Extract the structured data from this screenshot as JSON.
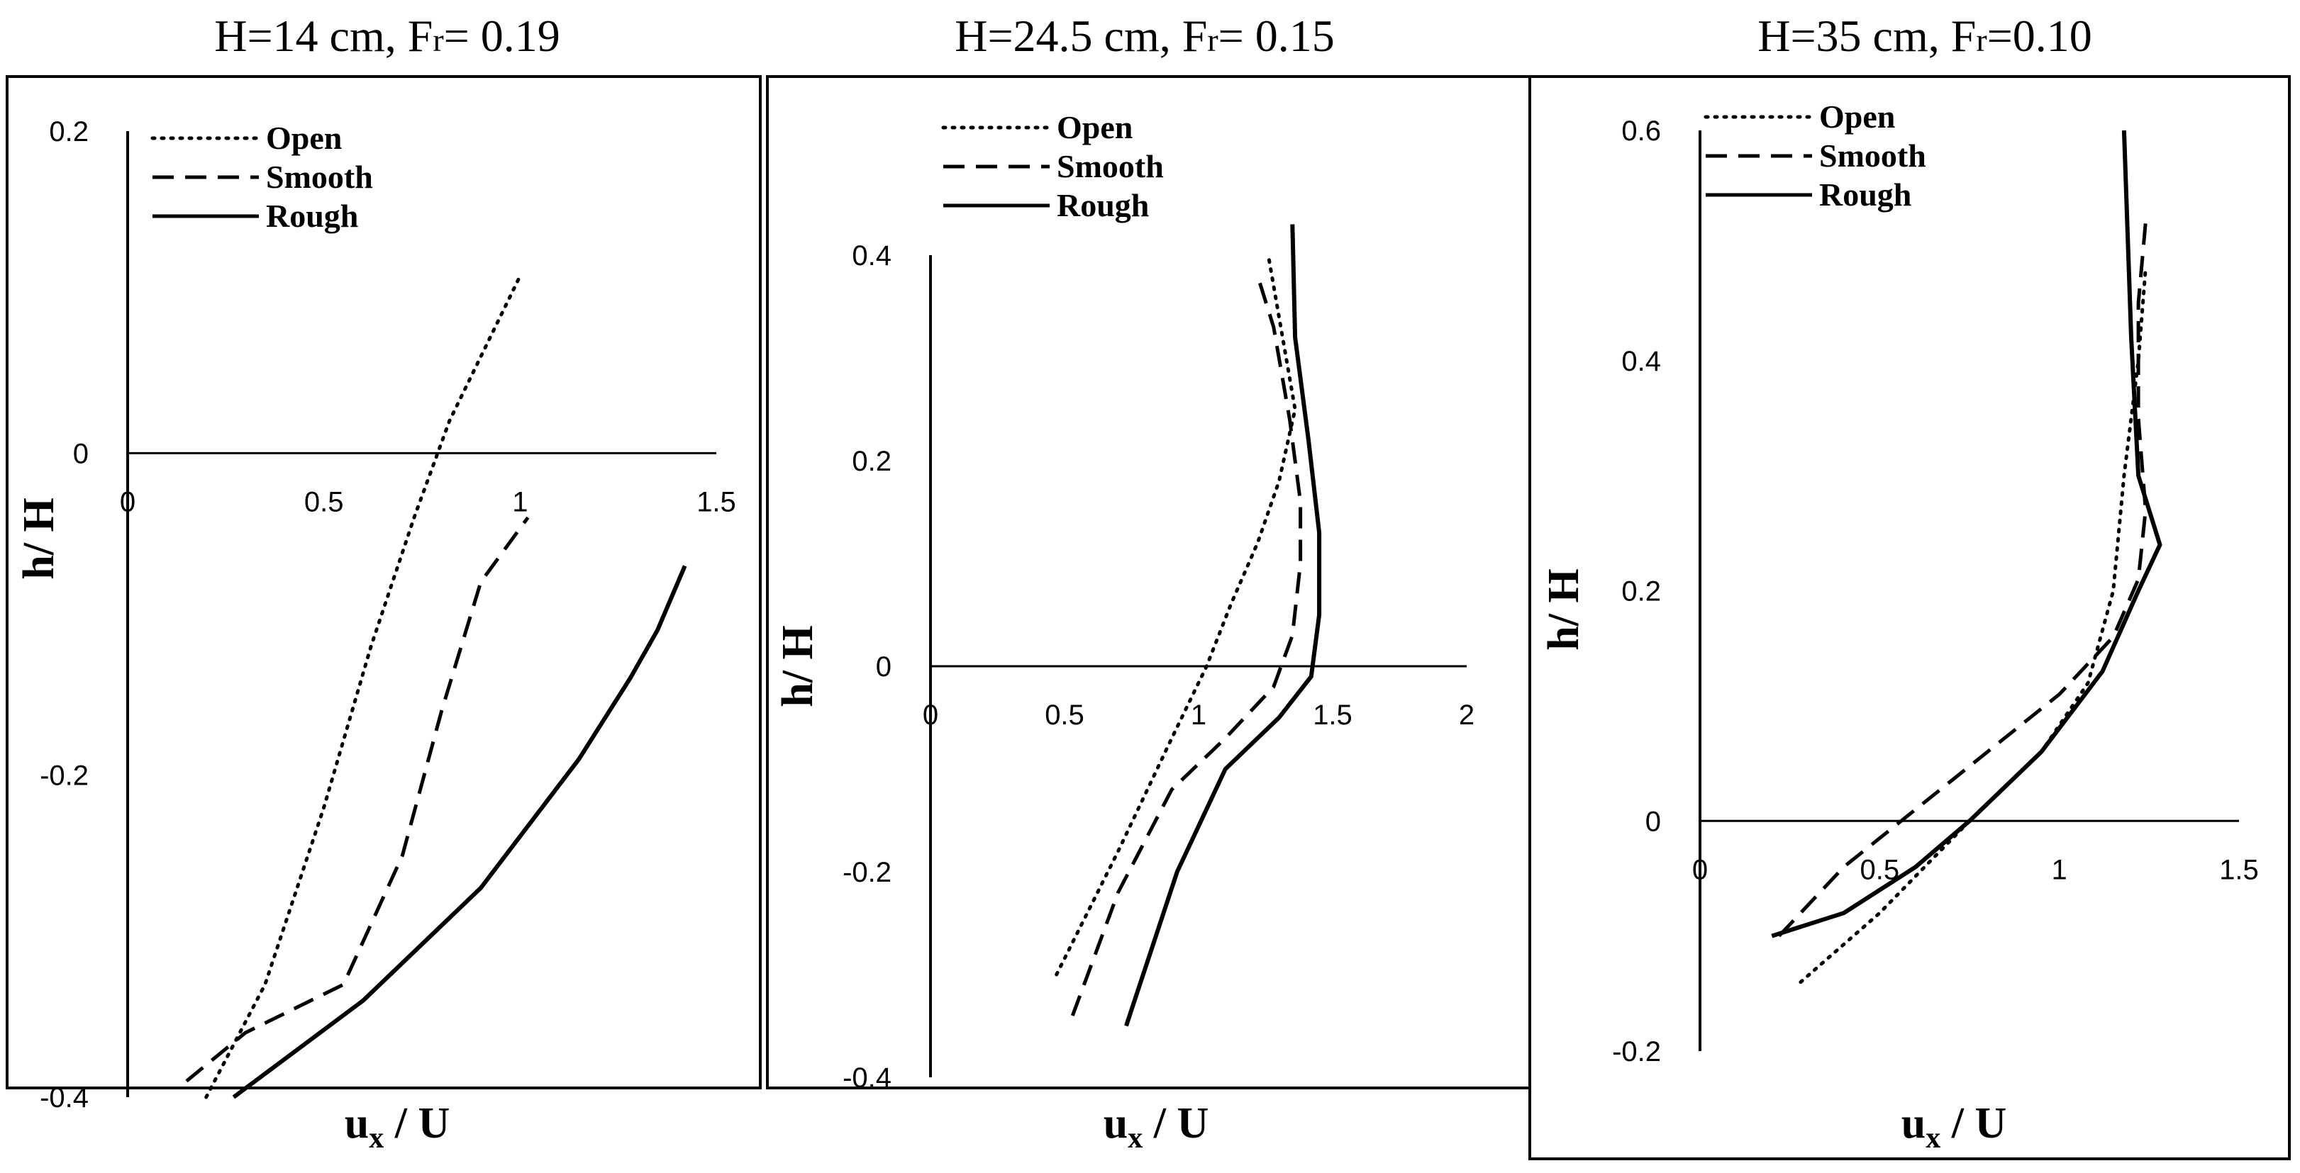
{
  "chart_data": [
    {
      "type": "line",
      "title_main": "H=14 cm, F",
      "title_sub": "r",
      "title_rest": "= 0.19",
      "xlabel_main": "u",
      "xlabel_sub": "x",
      "xlabel_rest": " / U",
      "ylabel": "h/ H",
      "xlim": [
        0,
        1.5
      ],
      "ylim": [
        -0.4,
        0.2
      ],
      "xticks": [
        "0",
        "0.5",
        "1",
        "1.5"
      ],
      "yticks": [
        "0.2",
        "0",
        "-0.2",
        "-0.4"
      ],
      "legend": [
        "Open",
        "Smooth",
        "Rough"
      ],
      "legend_position": "top-left",
      "series": [
        {
          "name": "Open",
          "style": "dotted",
          "points": [
            [
              0.2,
              -0.4
            ],
            [
              0.35,
              -0.33
            ],
            [
              0.5,
              -0.22
            ],
            [
              0.62,
              -0.12
            ],
            [
              0.73,
              -0.04
            ],
            [
              0.82,
              0.02
            ],
            [
              0.9,
              0.06
            ],
            [
              1.0,
              0.11
            ]
          ]
        },
        {
          "name": "Smooth",
          "style": "dashed",
          "points": [
            [
              0.15,
              -0.39
            ],
            [
              0.3,
              -0.36
            ],
            [
              0.55,
              -0.33
            ],
            [
              0.7,
              -0.25
            ],
            [
              0.8,
              -0.16
            ],
            [
              0.9,
              -0.08
            ],
            [
              1.02,
              -0.04
            ]
          ]
        },
        {
          "name": "Rough",
          "style": "solid",
          "points": [
            [
              0.27,
              -0.4
            ],
            [
              0.6,
              -0.34
            ],
            [
              0.9,
              -0.27
            ],
            [
              1.15,
              -0.19
            ],
            [
              1.28,
              -0.14
            ],
            [
              1.35,
              -0.11
            ],
            [
              1.42,
              -0.07
            ]
          ]
        }
      ]
    },
    {
      "type": "line",
      "title_main": "H=24.5 cm, F",
      "title_sub": "r",
      "title_rest": "= 0.15",
      "xlabel_main": "u",
      "xlabel_sub": "x",
      "xlabel_rest": " / U",
      "ylabel": "h/ H",
      "xlim": [
        0,
        2
      ],
      "ylim": [
        -0.4,
        0.4
      ],
      "xticks": [
        "0",
        "0.5",
        "1",
        "1.5",
        "2"
      ],
      "yticks": [
        "0.4",
        "0.2",
        "0",
        "-0.2",
        "-0.4"
      ],
      "legend": [
        "Open",
        "Smooth",
        "Rough"
      ],
      "legend_position": "top-left",
      "series": [
        {
          "name": "Open",
          "style": "dotted",
          "points": [
            [
              0.47,
              -0.3
            ],
            [
              0.7,
              -0.18
            ],
            [
              0.9,
              -0.07
            ],
            [
              1.03,
              0
            ],
            [
              1.12,
              0.06
            ],
            [
              1.22,
              0.12
            ],
            [
              1.3,
              0.18
            ],
            [
              1.36,
              0.25
            ],
            [
              1.3,
              0.34
            ],
            [
              1.26,
              0.4
            ]
          ]
        },
        {
          "name": "Smooth",
          "style": "dashed",
          "points": [
            [
              0.53,
              -0.34
            ],
            [
              0.7,
              -0.22
            ],
            [
              0.9,
              -0.12
            ],
            [
              1.1,
              -0.07
            ],
            [
              1.28,
              -0.02
            ],
            [
              1.35,
              0.03
            ],
            [
              1.38,
              0.1
            ],
            [
              1.38,
              0.16
            ],
            [
              1.34,
              0.24
            ],
            [
              1.28,
              0.33
            ],
            [
              1.22,
              0.38
            ]
          ]
        },
        {
          "name": "Rough",
          "style": "solid",
          "points": [
            [
              0.73,
              -0.35
            ],
            [
              0.92,
              -0.2
            ],
            [
              1.1,
              -0.1
            ],
            [
              1.3,
              -0.05
            ],
            [
              1.42,
              -0.01
            ],
            [
              1.45,
              0.05
            ],
            [
              1.45,
              0.13
            ],
            [
              1.41,
              0.22
            ],
            [
              1.36,
              0.32
            ],
            [
              1.35,
              0.43
            ]
          ]
        }
      ]
    },
    {
      "type": "line",
      "title_main": "H=35 cm, F",
      "title_sub": "r",
      "title_rest": "=0.10",
      "xlabel_main": "u",
      "xlabel_sub": "x",
      "xlabel_rest": " / U",
      "ylabel": "h/ H",
      "xlim": [
        0,
        1.5
      ],
      "ylim": [
        -0.2,
        0.6
      ],
      "xticks": [
        "0",
        "0.5",
        "1",
        "1.5"
      ],
      "yticks": [
        "0.6",
        "0.4",
        "0.2",
        "0",
        "-0.2"
      ],
      "legend": [
        "Open",
        "Smooth",
        "Rough"
      ],
      "legend_position": "top-left",
      "series": [
        {
          "name": "Open",
          "style": "dotted",
          "points": [
            [
              0.28,
              -0.14
            ],
            [
              0.5,
              -0.08
            ],
            [
              0.75,
              0
            ],
            [
              0.95,
              0.06
            ],
            [
              1.08,
              0.12
            ],
            [
              1.15,
              0.2
            ],
            [
              1.18,
              0.3
            ],
            [
              1.22,
              0.4
            ],
            [
              1.24,
              0.48
            ]
          ]
        },
        {
          "name": "Smooth",
          "style": "dashed",
          "points": [
            [
              0.22,
              -0.1
            ],
            [
              0.4,
              -0.04
            ],
            [
              0.6,
              0.01
            ],
            [
              0.8,
              0.06
            ],
            [
              1.0,
              0.11
            ],
            [
              1.15,
              0.16
            ],
            [
              1.22,
              0.21
            ],
            [
              1.24,
              0.27
            ],
            [
              1.22,
              0.35
            ],
            [
              1.22,
              0.45
            ],
            [
              1.24,
              0.52
            ]
          ]
        },
        {
          "name": "Rough",
          "style": "solid",
          "points": [
            [
              0.2,
              -0.1
            ],
            [
              0.4,
              -0.08
            ],
            [
              0.6,
              -0.04
            ],
            [
              0.75,
              0
            ],
            [
              0.95,
              0.06
            ],
            [
              1.12,
              0.13
            ],
            [
              1.22,
              0.2
            ],
            [
              1.28,
              0.24
            ],
            [
              1.22,
              0.3
            ],
            [
              1.2,
              0.42
            ],
            [
              1.18,
              0.6
            ]
          ]
        }
      ]
    }
  ]
}
